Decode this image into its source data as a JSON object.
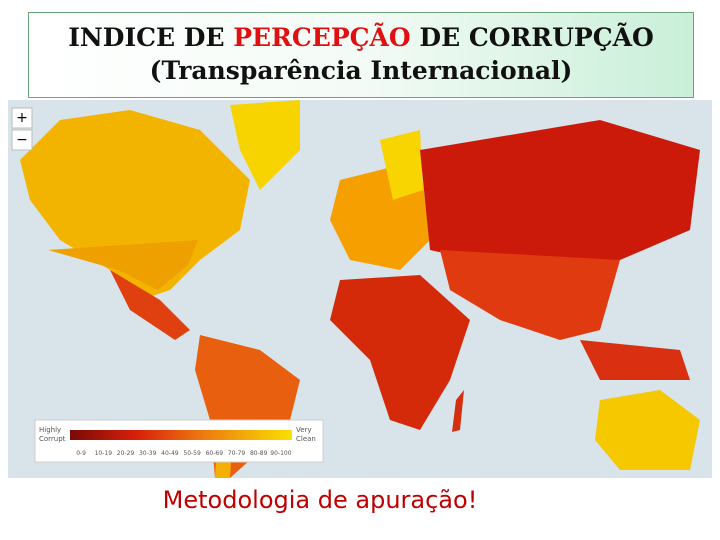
{
  "header": {
    "title_parts": [
      "INDICE DE ",
      "PERCEPÇÃO",
      " DE CORRUPÇÃO"
    ],
    "subtitle": "(Transparência Internacional)"
  },
  "map": {
    "zoom_in": "+",
    "zoom_out": "−",
    "legend": {
      "low_label": [
        "Highly",
        "Corrupt"
      ],
      "high_label": [
        "Very",
        "Clean"
      ],
      "scale": [
        "0-9",
        "10-19",
        "20-29",
        "30-39",
        "40-49",
        "50-59",
        "60-69",
        "70-79",
        "80-89",
        "90-100"
      ]
    }
  },
  "caption": "Metodologia de apuração!"
}
